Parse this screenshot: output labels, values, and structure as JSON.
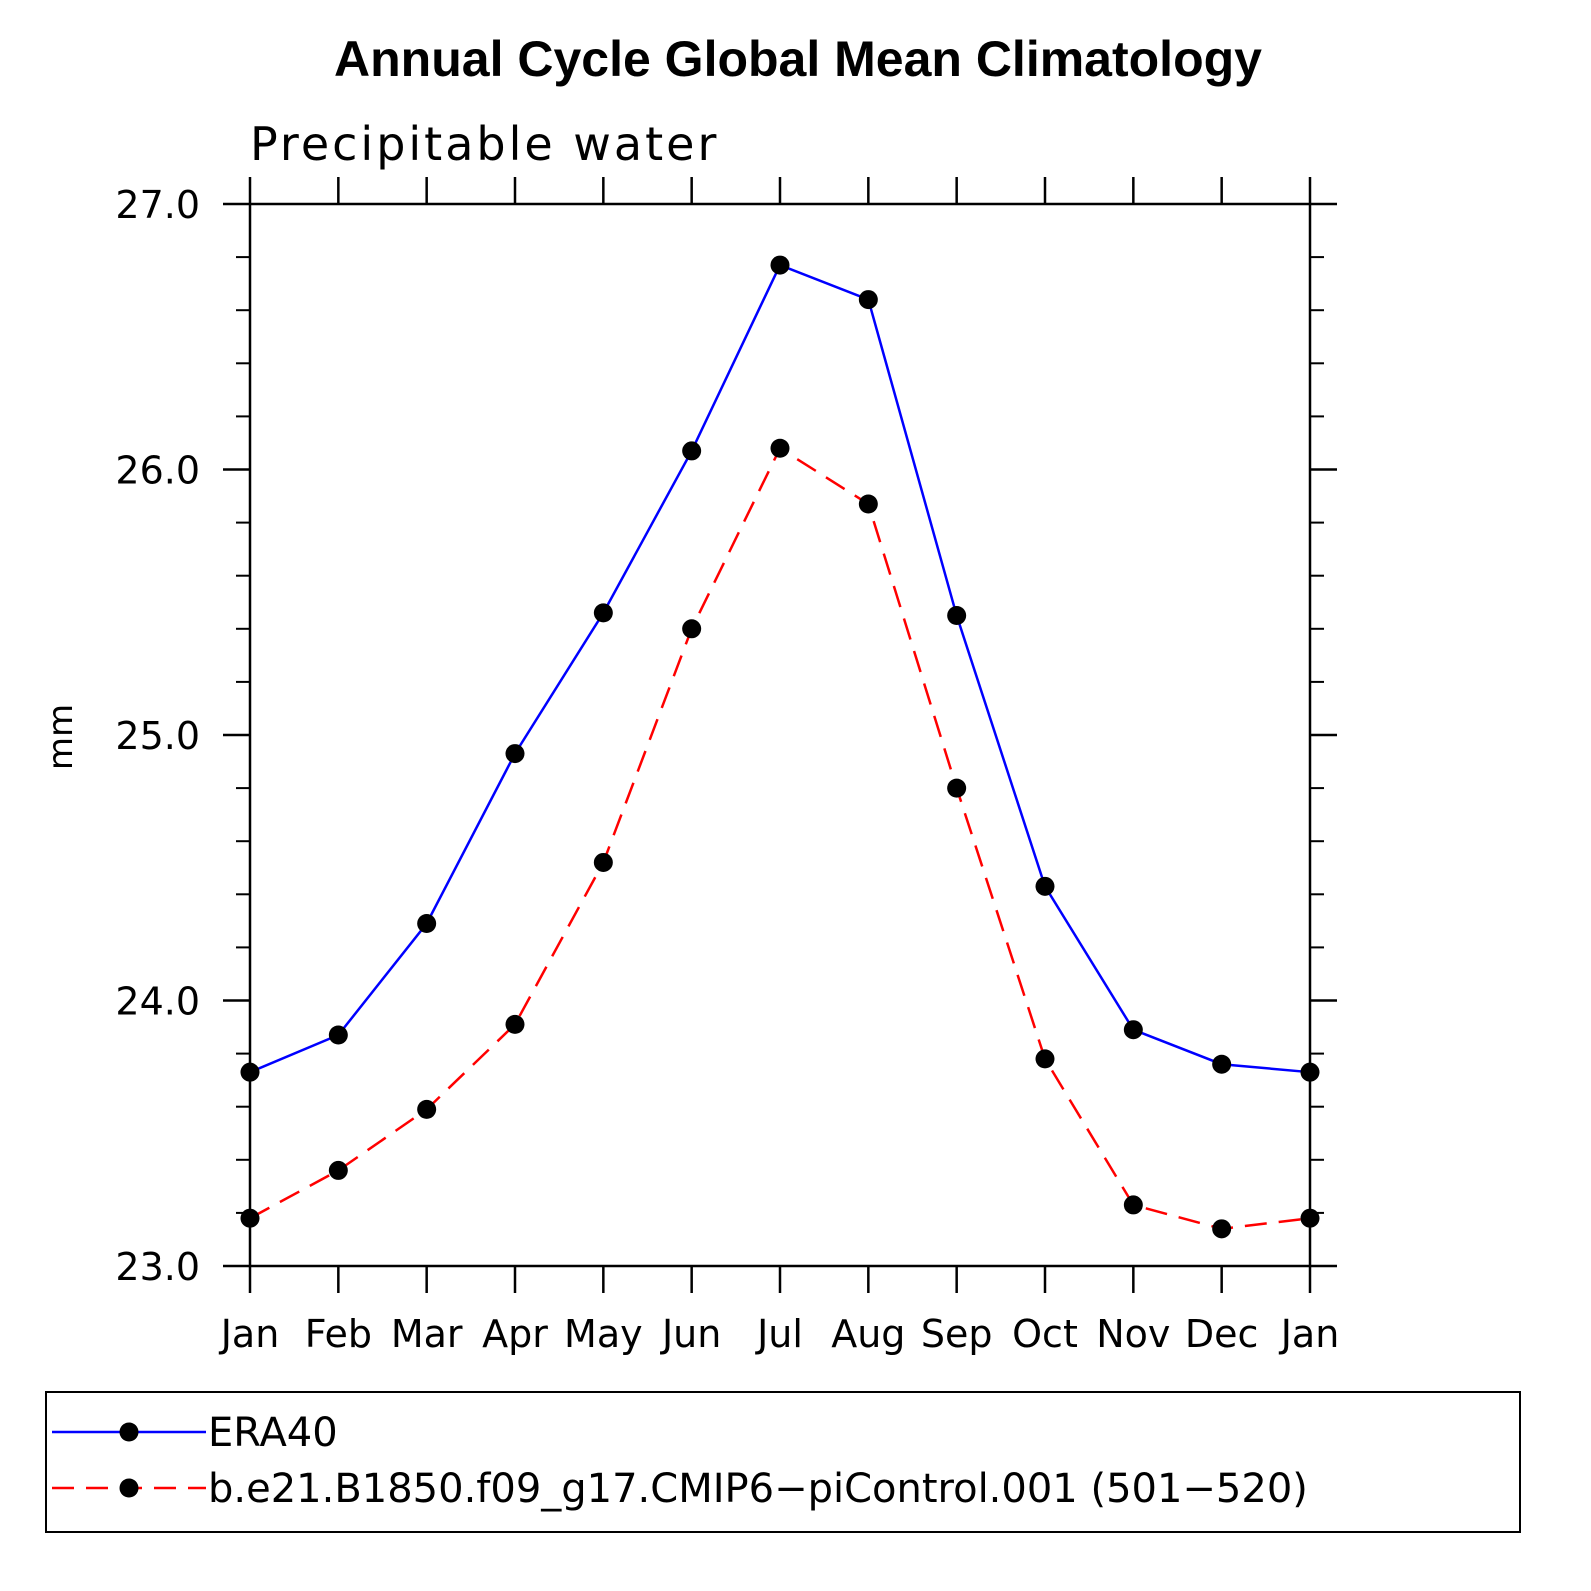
{
  "chart_data": {
    "type": "line",
    "title": "Annual Cycle Global Mean Climatology",
    "subtitle": "Precipitable water",
    "xlabel": "",
    "ylabel": "mm",
    "categories": [
      "Jan",
      "Feb",
      "Mar",
      "Apr",
      "May",
      "Jun",
      "Jul",
      "Aug",
      "Sep",
      "Oct",
      "Nov",
      "Dec",
      "Jan"
    ],
    "ylim": [
      23.0,
      27.0
    ],
    "yticks": [
      "23.0",
      "24.0",
      "25.0",
      "26.0",
      "27.0"
    ],
    "grid": false,
    "legend_position": "bottom",
    "series": [
      {
        "name": "ERA40",
        "color": "#0000ff",
        "line_style": "solid",
        "marker": "filled-circle",
        "values": [
          23.73,
          23.87,
          24.29,
          24.93,
          25.46,
          26.07,
          26.77,
          26.64,
          25.45,
          24.43,
          23.89,
          23.76,
          23.73
        ]
      },
      {
        "name": "b.e21.B1850.f09_g17.CMIP6−piControl.001 (501−520)",
        "color": "#ff0000",
        "line_style": "dashed",
        "marker": "filled-circle",
        "values": [
          23.18,
          23.36,
          23.59,
          23.91,
          24.52,
          25.4,
          26.08,
          25.87,
          24.8,
          23.78,
          23.23,
          23.14,
          23.18
        ]
      }
    ]
  }
}
